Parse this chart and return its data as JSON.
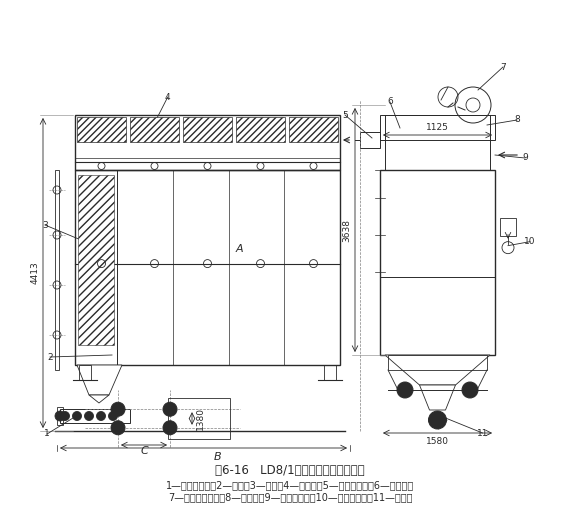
{
  "title": "图6-16   LD8/1型机械振打袋式除尘器",
  "caption_line1": "1—螺旋输送机；2—灰斗；3—滤袋；4—检修门；5—净化气出口；6—排气阀；",
  "caption_line2": "7—机械振打装置；8—进气阀；9—反吹气进口；10—含尘气进口；11—排尘阀",
  "bg_color": "#ffffff",
  "lc": "#2a2a2a",
  "dc": "#2a2a2a",
  "dim_4413": "4413",
  "dim_3638": "3638",
  "dim_1125": "1125",
  "dim_1580": "1580",
  "dim_1380": "1380",
  "dim_A": "A",
  "dim_B": "B",
  "dim_C": "C"
}
